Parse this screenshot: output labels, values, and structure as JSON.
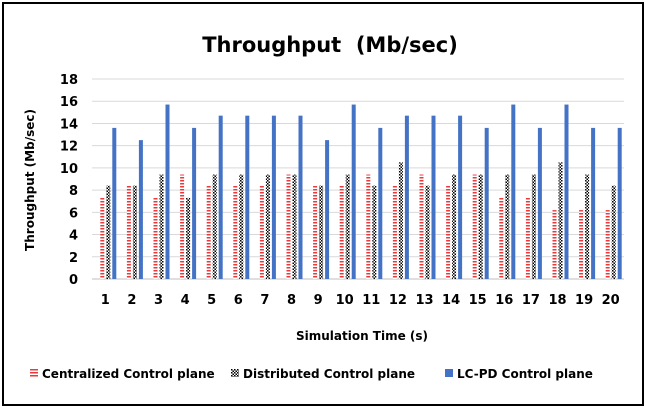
{
  "chart_data": {
    "type": "bar",
    "title": "Throughput  (Mb/sec)",
    "xlabel": "Simulation Time (s)",
    "ylabel": "Throughput (Mb/sec)",
    "ylim": [
      0,
      18
    ],
    "yticks": [
      0,
      2,
      4,
      6,
      8,
      10,
      12,
      14,
      16,
      18
    ],
    "grid": true,
    "legend_position": "bottom",
    "categories": [
      "1",
      "2",
      "3",
      "4",
      "5",
      "6",
      "7",
      "8",
      "9",
      "10",
      "11",
      "12",
      "13",
      "14",
      "15",
      "16",
      "17",
      "18",
      "19",
      "20"
    ],
    "series": [
      {
        "name": "Centralized Control plane",
        "color": "#e8393b",
        "pattern": "horizontal-stripes",
        "values": [
          7.3,
          8.4,
          7.3,
          9.4,
          8.4,
          8.4,
          8.4,
          9.4,
          8.4,
          8.4,
          9.4,
          8.4,
          9.4,
          8.4,
          9.4,
          7.3,
          7.3,
          6.2,
          6.2,
          6.2
        ]
      },
      {
        "name": "Distributed Control plane",
        "color": "#000000",
        "pattern": "checkerboard",
        "values": [
          8.4,
          8.4,
          9.4,
          7.3,
          9.4,
          9.4,
          9.4,
          9.4,
          8.4,
          9.4,
          8.4,
          10.5,
          8.4,
          9.4,
          9.4,
          9.4,
          9.4,
          10.5,
          9.4,
          8.4
        ]
      },
      {
        "name": "LC-PD Control plane",
        "color": "#4472c4",
        "pattern": "solid",
        "values": [
          13.6,
          12.5,
          15.7,
          13.6,
          14.7,
          14.7,
          14.7,
          14.7,
          12.5,
          15.7,
          13.6,
          14.7,
          14.7,
          14.7,
          13.6,
          15.7,
          13.6,
          15.7,
          13.6,
          13.6
        ]
      }
    ]
  }
}
